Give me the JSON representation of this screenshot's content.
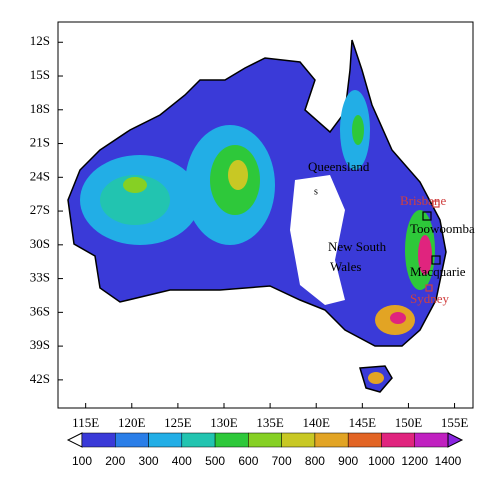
{
  "map": {
    "lat_ticks": [
      {
        "value": -12,
        "label": "12S"
      },
      {
        "value": -15,
        "label": "15S"
      },
      {
        "value": -18,
        "label": "18S"
      },
      {
        "value": -21,
        "label": "21S"
      },
      {
        "value": -24,
        "label": "24S"
      },
      {
        "value": -27,
        "label": "27S"
      },
      {
        "value": -30,
        "label": "30S"
      },
      {
        "value": -33,
        "label": "33S"
      },
      {
        "value": -36,
        "label": "36S"
      },
      {
        "value": -39,
        "label": "39S"
      },
      {
        "value": -42,
        "label": "42S"
      }
    ],
    "lon_ticks": [
      {
        "value": 115,
        "label": "115E"
      },
      {
        "value": 120,
        "label": "120E"
      },
      {
        "value": 125,
        "label": "125E"
      },
      {
        "value": 130,
        "label": "130E"
      },
      {
        "value": 135,
        "label": "135E"
      },
      {
        "value": 140,
        "label": "140E"
      },
      {
        "value": 145,
        "label": "145E"
      },
      {
        "value": 150,
        "label": "150E"
      },
      {
        "value": 155,
        "label": "155E"
      }
    ],
    "lat_range": [
      -44.5,
      -10.2
    ],
    "lon_range": [
      112,
      157
    ],
    "places": {
      "queensland": "Queensland",
      "s": "s",
      "brisbane": "Brisbane",
      "toowoomba": "Toowoomba",
      "nsw": [
        "New South",
        "Wales"
      ],
      "macquarie": "Macquarie",
      "sydney": "Sydney"
    },
    "colorbar": {
      "levels": [
        100,
        200,
        300,
        400,
        500,
        600,
        700,
        800,
        900,
        1000,
        1200,
        1400
      ],
      "colors": [
        "#ffffff",
        "#3a3ad8",
        "#2a7ee8",
        "#22aee6",
        "#22c4b0",
        "#2ec83a",
        "#86d024",
        "#c8c824",
        "#e2a424",
        "#e26424",
        "#e0247e",
        "#c020c0",
        "#8a24e0"
      ]
    }
  }
}
